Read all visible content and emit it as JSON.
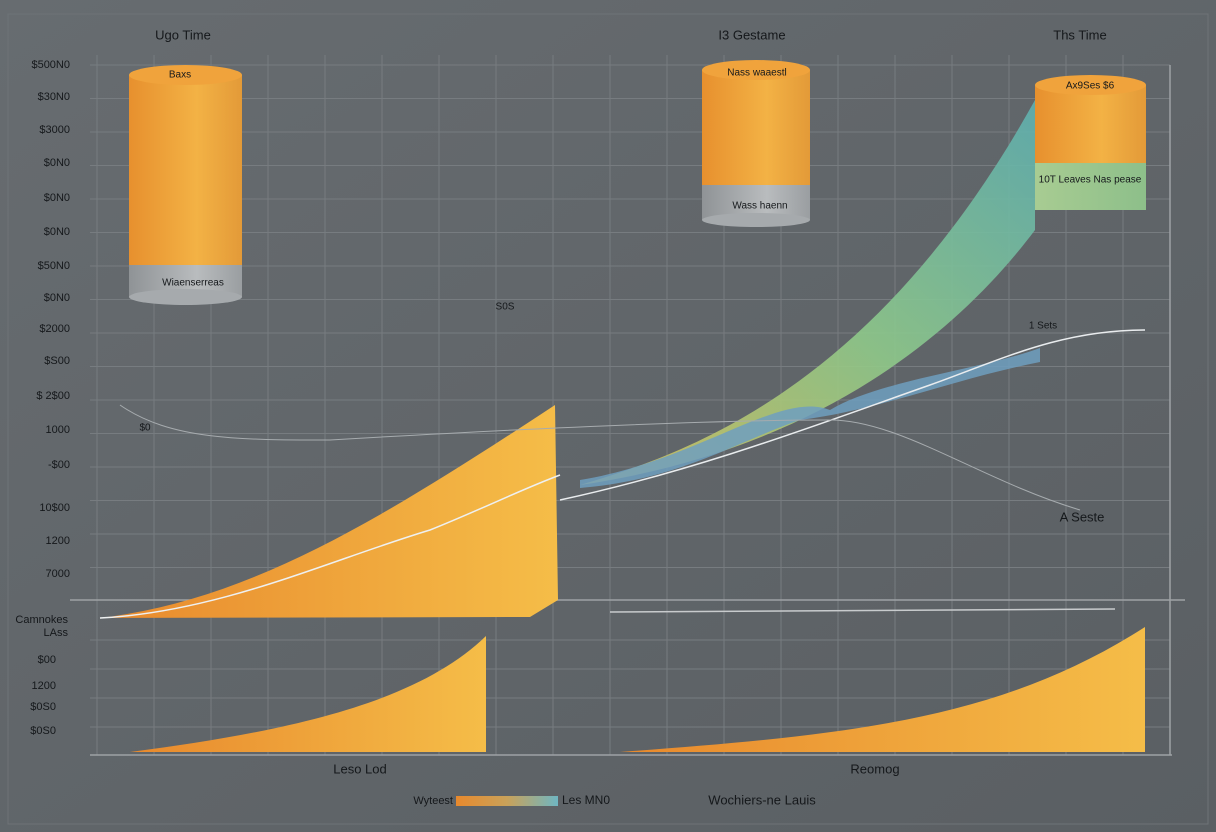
{
  "header": {
    "titles": [
      "Ugo Time",
      "I3 Gestame",
      "Ths Time"
    ]
  },
  "upper_axis": {
    "labels": [
      "$500N0",
      "$30N0",
      "$3000",
      "$0N0",
      "$0N0",
      "$0N0",
      "$50N0",
      "$0N0",
      "$2000",
      "$S00",
      "$ 2$00",
      "1000",
      "-$00",
      "10$00",
      "1200",
      "7000"
    ]
  },
  "lower_axis": {
    "labels": [
      "Camnokes",
      "LAss",
      "$00",
      "1200",
      "$0S0",
      "$0S0"
    ]
  },
  "cylinders": [
    {
      "top": "Baxs",
      "bottom": "Wiaenserreas"
    },
    {
      "top": "Nass waaestl",
      "bottom": "Wass haenn"
    },
    {
      "top": "Ax9Ses $6",
      "bottom": "10T Leaves Nas pease"
    }
  ],
  "annotations": [
    "S0S",
    "$0",
    "1 Sets",
    "A Seste"
  ],
  "x_labels": [
    "Leso Lod",
    "Reomog"
  ],
  "legend": [
    "Wyteest",
    "Les MN0",
    "Wochiers-ne Lauis"
  ]
}
